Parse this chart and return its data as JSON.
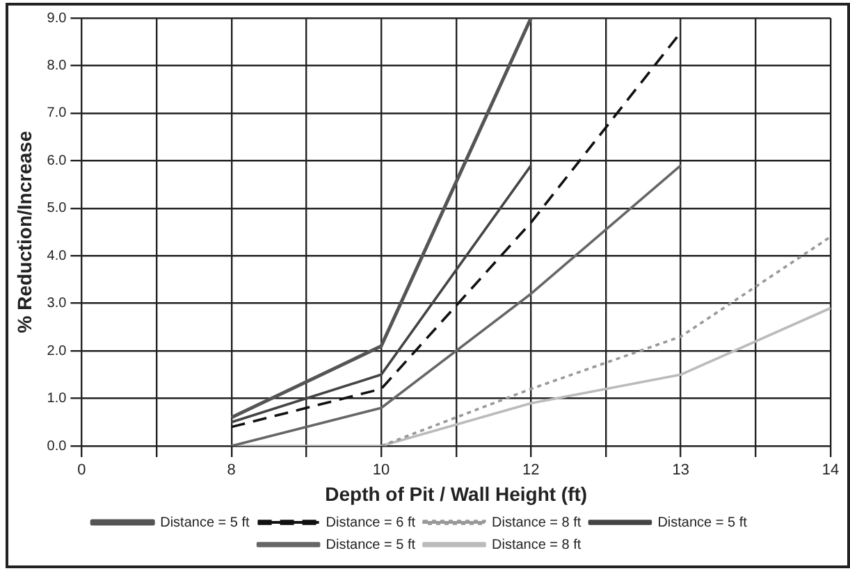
{
  "chart_data": {
    "type": "line",
    "xlabel": "Depth of Pit / Wall Height (ft)",
    "ylabel": "% Reduction/Increase",
    "categories": [
      "0",
      null,
      "8",
      null,
      "10",
      null,
      "12",
      null,
      "13",
      null,
      "14"
    ],
    "series": [
      {
        "name": "Distance = 5 ft",
        "color": "#555555",
        "line_style": "solid",
        "values": [
          null,
          null,
          0.6,
          null,
          2.1,
          null,
          9.0,
          null,
          null,
          null,
          null
        ]
      },
      {
        "name": "Distance = 6 ft",
        "color": "#111111",
        "line_style": "dashed",
        "values": [
          null,
          null,
          0.4,
          null,
          1.2,
          null,
          4.7,
          null,
          8.7,
          null,
          null
        ]
      },
      {
        "name": "Distance = 8 ft",
        "color": "#999999",
        "line_style": "dotted",
        "values": [
          null,
          null,
          null,
          null,
          0.0,
          null,
          1.2,
          null,
          2.3,
          null,
          4.4
        ]
      },
      {
        "name": "Distance = 5 ft",
        "color": "#444444",
        "line_style": "solid",
        "values": [
          null,
          null,
          0.5,
          null,
          1.5,
          null,
          5.9,
          null,
          null,
          null,
          null
        ]
      },
      {
        "name": "Distance = 5 ft",
        "color": "#666666",
        "line_style": "solid",
        "values": [
          null,
          null,
          0.0,
          null,
          0.8,
          null,
          3.2,
          null,
          5.9,
          null,
          null
        ]
      },
      {
        "name": "Distance = 8 ft",
        "color": "#bbbbbb",
        "line_style": "solid",
        "values": [
          null,
          null,
          0.0,
          null,
          0.0,
          null,
          0.9,
          null,
          1.5,
          null,
          2.9
        ]
      }
    ],
    "ylim": [
      0,
      9
    ],
    "yticks": [
      {
        "value": 0,
        "label": "0.0"
      },
      {
        "value": 1,
        "label": "1.0"
      },
      {
        "value": 2,
        "label": "2.0"
      },
      {
        "value": 3,
        "label": "3.0"
      },
      {
        "value": 4,
        "label": "4.0"
      },
      {
        "value": 5,
        "label": "5.0"
      },
      {
        "value": 6,
        "label": "6.0"
      },
      {
        "value": 7,
        "label": "7.0"
      },
      {
        "value": 8,
        "label": "8.0"
      },
      {
        "value": 9,
        "label": "9.0"
      }
    ],
    "grid": true,
    "legend": "bottom",
    "marker": "none"
  }
}
